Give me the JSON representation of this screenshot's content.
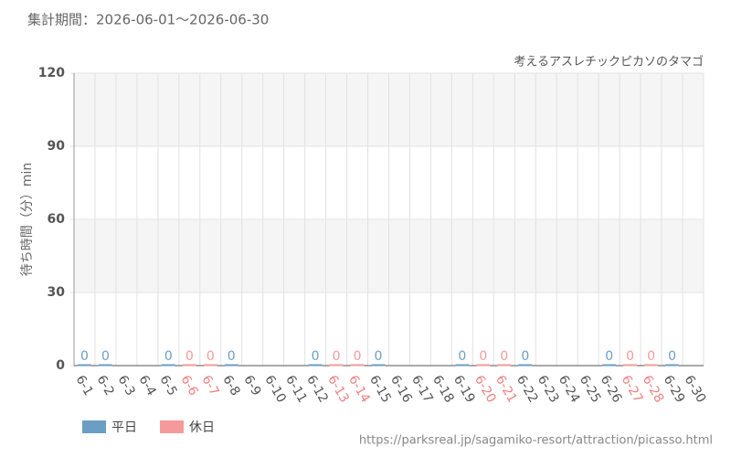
{
  "header": "集計期間：2026-06-01～2026-06-30",
  "footer_url": "https://parksreal.jp/sagamiko-resort/attraction/picasso.html",
  "chart_data": {
    "type": "bar",
    "subtitle": "考えるアスレチックピカソのタマゴ",
    "y_label": "待ち時間（分）min",
    "categories": [
      "6-1",
      "6-2",
      "6-3",
      "6-4",
      "6-5",
      "6-6",
      "6-7",
      "6-8",
      "6-9",
      "6-10",
      "6-11",
      "6-12",
      "6-13",
      "6-14",
      "6-15",
      "6-16",
      "6-17",
      "6-18",
      "6-19",
      "6-20",
      "6-21",
      "6-22",
      "6-23",
      "6-24",
      "6-25",
      "6-26",
      "6-27",
      "6-28",
      "6-29",
      "6-30"
    ],
    "category_colors": [
      "#555",
      "#555",
      "#555",
      "#555",
      "#555",
      "#f08080",
      "#f08080",
      "#555",
      "#555",
      "#555",
      "#555",
      "#555",
      "#f08080",
      "#f08080",
      "#555",
      "#555",
      "#555",
      "#555",
      "#555",
      "#f08080",
      "#f08080",
      "#555",
      "#555",
      "#555",
      "#555",
      "#555",
      "#f08080",
      "#f08080",
      "#555",
      "#555"
    ],
    "series": [
      {
        "name": "平日",
        "color": "#6a9ec5",
        "values": [
          0,
          0,
          null,
          null,
          0,
          null,
          null,
          0,
          null,
          null,
          null,
          0,
          null,
          null,
          0,
          null,
          null,
          null,
          0,
          null,
          null,
          0,
          null,
          null,
          null,
          0,
          null,
          null,
          0,
          null
        ]
      },
      {
        "name": "休日",
        "color": "#f59a9a",
        "values": [
          null,
          null,
          null,
          null,
          null,
          0,
          0,
          null,
          null,
          null,
          null,
          null,
          0,
          0,
          null,
          null,
          null,
          null,
          null,
          0,
          0,
          null,
          null,
          null,
          null,
          null,
          0,
          0,
          null,
          null
        ]
      }
    ],
    "ylim": [
      0,
      120
    ],
    "yticks": [
      0,
      30,
      60,
      90,
      120
    ],
    "grid": true
  }
}
